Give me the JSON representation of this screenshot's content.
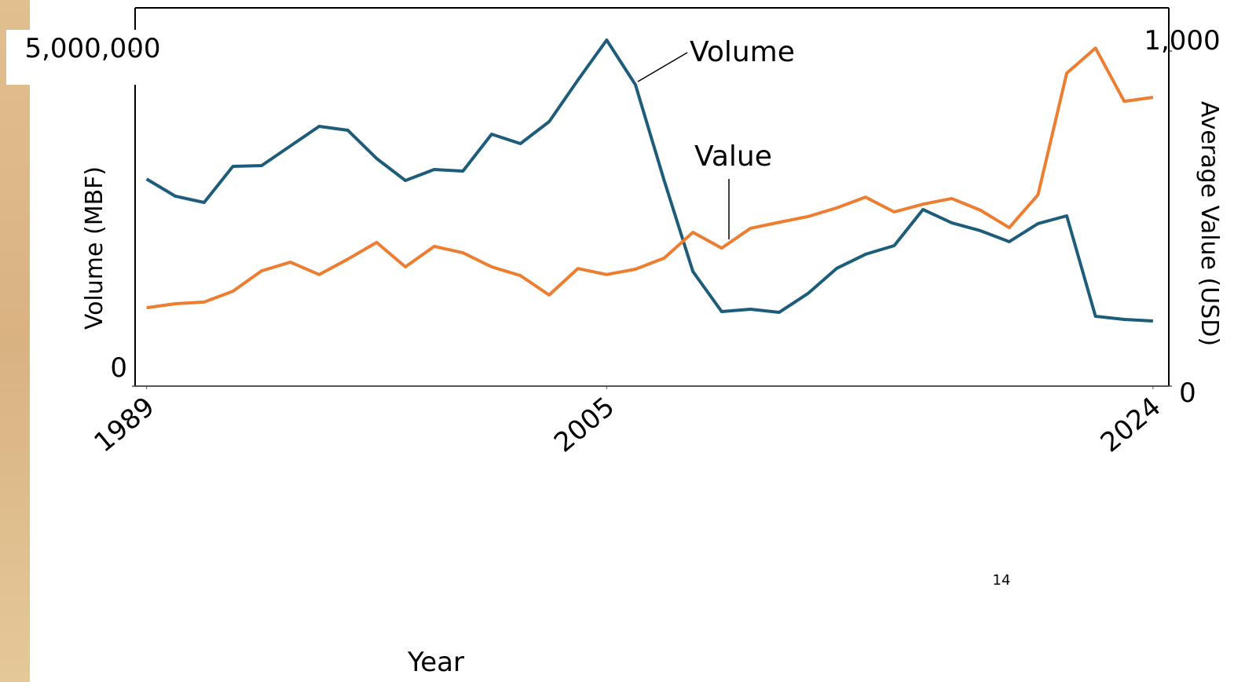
{
  "chart_data": {
    "type": "line",
    "x": [
      1989,
      1990,
      1991,
      1992,
      1993,
      1994,
      1995,
      1996,
      1997,
      1998,
      1999,
      2000,
      2001,
      2002,
      2003,
      2004,
      2005,
      2006,
      2007,
      2008,
      2009,
      2010,
      2011,
      2012,
      2013,
      2014,
      2015,
      2016,
      2017,
      2018,
      2019,
      2020,
      2021,
      2022,
      2023,
      2024
    ],
    "series": [
      {
        "name": "Volume",
        "color": "#1d5c7a",
        "axis": "y",
        "values": [
          3090000,
          2834000,
          2740000,
          3279000,
          3290000,
          3583000,
          3876000,
          3817000,
          3396000,
          3068000,
          3232000,
          3208000,
          3759000,
          3618000,
          3946000,
          4567000,
          5164000,
          4497000,
          3068000,
          1710000,
          1112000,
          1148000,
          1101000,
          1382000,
          1757000,
          1967000,
          2096000,
          2635000,
          2436000,
          2319000,
          2155000,
          2424000,
          2541000,
          1042000,
          995000,
          972000
        ]
      },
      {
        "name": "Value",
        "color": "#ed7d31",
        "axis": "y2",
        "values": [
          234,
          246,
          251,
          283,
          344,
          370,
          333,
          379,
          429,
          356,
          417,
          398,
          356,
          330,
          272,
          351,
          333,
          349,
          382,
          459,
          412,
          471,
          489,
          506,
          532,
          564,
          520,
          543,
          560,
          525,
          473,
          571,
          934,
          1009,
          850,
          862
        ]
      }
    ],
    "xlabel": "Year",
    "ylabel": "Volume (MBF)",
    "y2label": "Average Value (USD)",
    "xlim": [
      1988.6,
      2024.55
    ],
    "xticks": [
      1989,
      2005,
      2024
    ],
    "ylim": [
      0,
      5644000
    ],
    "yticks": [
      0,
      {
        "value": 5000000,
        "label": "5,000,000"
      }
    ],
    "y2lim": [
      0,
      1129
    ],
    "y2ticks": [
      0,
      {
        "value": 1000,
        "label": "1,000"
      }
    ],
    "page_number": "14"
  }
}
